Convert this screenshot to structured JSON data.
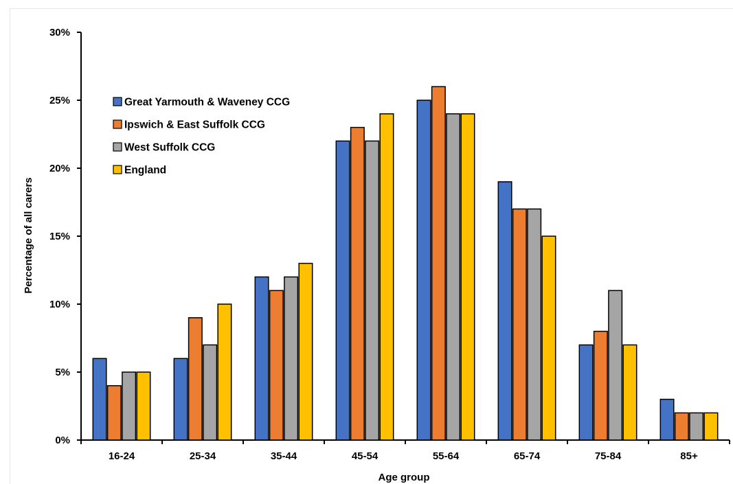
{
  "chart_data": {
    "type": "bar",
    "title": "",
    "xlabel": "Age group",
    "ylabel": "Percentage of all carers",
    "ylim": [
      0,
      30
    ],
    "yticks": [
      0,
      5,
      10,
      15,
      20,
      25,
      30
    ],
    "ytick_labels": [
      "0%",
      "5%",
      "10%",
      "15%",
      "20%",
      "25%",
      "30%"
    ],
    "categories": [
      "16-24",
      "25-34",
      "35-44",
      "45-54",
      "55-64",
      "65-74",
      "75-84",
      "85+"
    ],
    "grid": false,
    "legend_position": "top-left",
    "series": [
      {
        "name": "Great Yarmouth & Waveney CCG",
        "color": "#4472c4",
        "values": [
          6,
          6,
          12,
          22,
          25,
          19,
          7,
          3
        ]
      },
      {
        "name": "Ipswich & East Suffolk CCG",
        "color": "#ed7d31",
        "values": [
          4,
          9,
          11,
          23,
          26,
          17,
          8,
          2
        ]
      },
      {
        "name": "West Suffolk CCG",
        "color": "#a5a5a5",
        "values": [
          5,
          7,
          12,
          22,
          24,
          17,
          11,
          2
        ]
      },
      {
        "name": "England",
        "color": "#ffc000",
        "values": [
          5,
          10,
          13,
          24,
          24,
          15,
          7,
          2
        ]
      }
    ]
  }
}
